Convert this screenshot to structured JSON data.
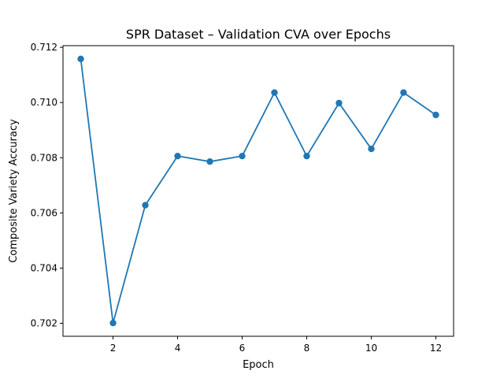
{
  "chart_data": {
    "type": "line",
    "title": "SPR Dataset – Validation CVA over Epochs",
    "xlabel": "Epoch",
    "ylabel": "Composite Variety Accuracy",
    "x": [
      1,
      2,
      3,
      4,
      5,
      6,
      7,
      8,
      9,
      10,
      11,
      12
    ],
    "series": [
      {
        "values": [
          0.71158,
          0.70201,
          0.70628,
          0.70806,
          0.70786,
          0.70806,
          0.71036,
          0.70806,
          0.70998,
          0.70832,
          0.71036,
          0.70955
        ],
        "color": "#1f77b4",
        "marker": "circle"
      }
    ],
    "xlim": [
      0.45,
      12.55
    ],
    "ylim": [
      0.70153,
      0.71206
    ],
    "xticks": [
      2,
      4,
      6,
      8,
      10,
      12
    ],
    "xtick_labels": [
      "2",
      "4",
      "6",
      "8",
      "10",
      "12"
    ],
    "yticks": [
      0.702,
      0.704,
      0.706,
      0.708,
      0.71,
      0.712
    ],
    "ytick_labels": [
      "0.702",
      "0.704",
      "0.706",
      "0.708",
      "0.710",
      "0.712"
    ],
    "grid": false,
    "legend": false
  }
}
